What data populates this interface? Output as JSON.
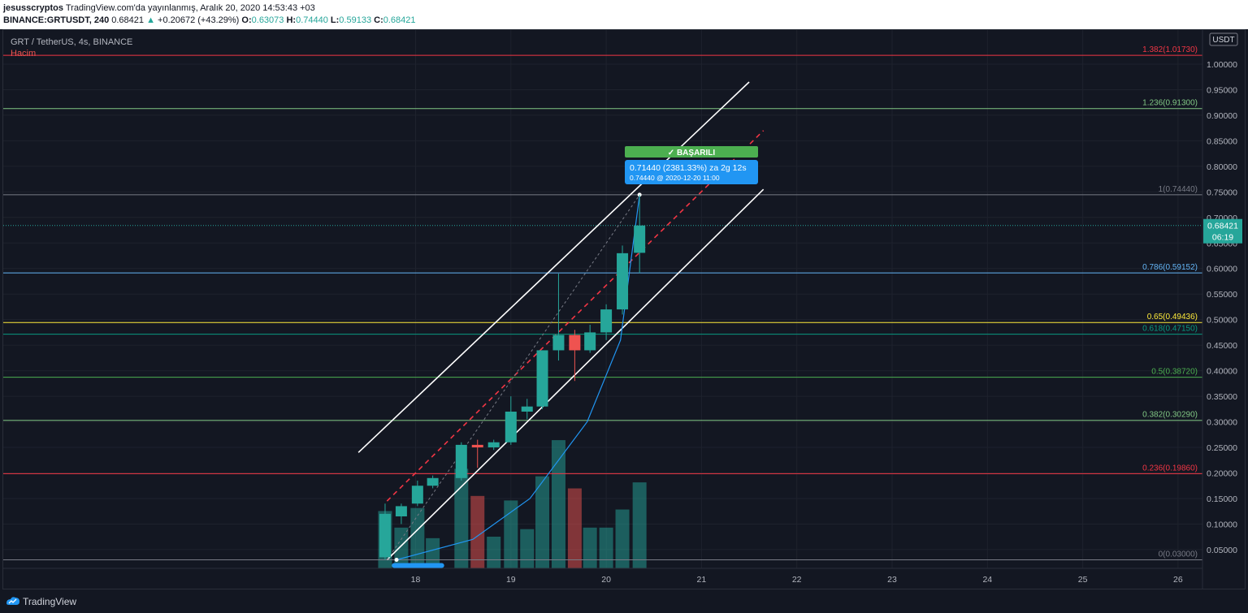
{
  "header": {
    "author": "jesusscryptos",
    "publish_text": "TradingView.com'da yayınlanmış, Aralık 20, 2020 14:53:43 +03",
    "symbol": "BINANCE:GRTUSDT, 240",
    "last": "0.68421",
    "change_icon": "triangle-up-icon",
    "change": "+0.20672 (+43.29%)",
    "o_label": "O:",
    "o": "0.63073",
    "h_label": "H:",
    "h": "0.74440",
    "l_label": "L:",
    "l": "0.59133",
    "c_label": "C:",
    "c": "0.68421"
  },
  "legend": {
    "title": "GRT / TetherUS, 4s, BINANCE",
    "volume_label": "Hacim"
  },
  "price_axis": {
    "currency": "USDT",
    "current_price": "0.68421",
    "countdown": "06:19"
  },
  "footer": {
    "brand": "TradingView",
    "logo_icon": "tradingview-logo-icon"
  },
  "annotations": {
    "success_label": "✓ BAŞARILI",
    "measure_line1": "0.71440 (2381.33%) za 2g 12s",
    "measure_line2": "0.74440 @ 2020-12-20  11:00"
  },
  "colors": {
    "up": "#26a69a",
    "down": "#ef5350",
    "background": "#131722",
    "success": "#4caf50",
    "measure": "#2196f3"
  },
  "chart_data": {
    "type": "candlestick",
    "symbol": "GRT / TetherUS",
    "interval": "4s",
    "exchange": "BINANCE",
    "ylim": [
      0.0,
      1.05
    ],
    "y_ticks": [
      "0.05000",
      "0.10000",
      "0.15000",
      "0.20000",
      "0.25000",
      "0.30000",
      "0.35000",
      "0.40000",
      "0.45000",
      "0.50000",
      "0.55000",
      "0.60000",
      "0.65000",
      "0.70000",
      "0.75000",
      "0.80000",
      "0.85000",
      "0.90000",
      "0.95000",
      "1.00000"
    ],
    "x_ticks": [
      "18",
      "19",
      "20",
      "21",
      "22",
      "23",
      "24",
      "25",
      "26"
    ],
    "fib_levels": [
      {
        "ratio": 0,
        "price": 0.03,
        "label": "0(0.03000)",
        "color": "#787b86"
      },
      {
        "ratio": 0.236,
        "price": 0.1986,
        "label": "0.236(0.19860)",
        "color": "#f23645"
      },
      {
        "ratio": 0.382,
        "price": 0.3029,
        "label": "0.382(0.30290)",
        "color": "#81c784"
      },
      {
        "ratio": 0.5,
        "price": 0.3872,
        "label": "0.5(0.38720)",
        "color": "#4caf50"
      },
      {
        "ratio": 0.618,
        "price": 0.4715,
        "label": "0.618(0.47150)",
        "color": "#089981"
      },
      {
        "ratio": 0.65,
        "price": 0.49436,
        "label": "0.65(0.49436)",
        "color": "#ffeb3b"
      },
      {
        "ratio": 0.786,
        "price": 0.59152,
        "label": "0.786(0.59152)",
        "color": "#64b5f6"
      },
      {
        "ratio": 1,
        "price": 0.7444,
        "label": "1(0.74440)",
        "color": "#787b86"
      },
      {
        "ratio": 1.236,
        "price": 0.913,
        "label": "1.236(0.91300)",
        "color": "#81c784"
      },
      {
        "ratio": 1.382,
        "price": 1.0173,
        "label": "1.382(1.01730)",
        "color": "#f23645"
      }
    ],
    "candles": [
      {
        "x": 17.68,
        "o": 0.035,
        "h": 0.14,
        "l": 0.03,
        "c": 0.12
      },
      {
        "x": 17.85,
        "o": 0.115,
        "h": 0.14,
        "l": 0.1,
        "c": 0.135
      },
      {
        "x": 18.02,
        "o": 0.14,
        "h": 0.185,
        "l": 0.135,
        "c": 0.175
      },
      {
        "x": 18.18,
        "o": 0.175,
        "h": 0.195,
        "l": 0.17,
        "c": 0.19
      },
      {
        "x": 18.48,
        "o": 0.19,
        "h": 0.26,
        "l": 0.185,
        "c": 0.255
      },
      {
        "x": 18.65,
        "o": 0.255,
        "h": 0.265,
        "l": 0.21,
        "c": 0.25
      },
      {
        "x": 18.82,
        "o": 0.25,
        "h": 0.265,
        "l": 0.245,
        "c": 0.26
      },
      {
        "x": 19.0,
        "o": 0.26,
        "h": 0.35,
        "l": 0.255,
        "c": 0.32
      },
      {
        "x": 19.17,
        "o": 0.32,
        "h": 0.345,
        "l": 0.305,
        "c": 0.33
      },
      {
        "x": 19.33,
        "o": 0.33,
        "h": 0.44,
        "l": 0.325,
        "c": 0.44
      },
      {
        "x": 19.5,
        "o": 0.44,
        "h": 0.59,
        "l": 0.42,
        "c": 0.47
      },
      {
        "x": 19.67,
        "o": 0.47,
        "h": 0.48,
        "l": 0.38,
        "c": 0.44
      },
      {
        "x": 19.83,
        "o": 0.44,
        "h": 0.49,
        "l": 0.435,
        "c": 0.475
      },
      {
        "x": 20.0,
        "o": 0.475,
        "h": 0.53,
        "l": 0.46,
        "c": 0.52
      },
      {
        "x": 20.17,
        "o": 0.52,
        "h": 0.645,
        "l": 0.51,
        "c": 0.63
      },
      {
        "x": 20.35,
        "o": 0.63073,
        "h": 0.7444,
        "l": 0.59133,
        "c": 0.68421
      }
    ],
    "volumes": [
      {
        "x": 17.68,
        "v": 0.38,
        "up": true
      },
      {
        "x": 17.85,
        "v": 0.27,
        "up": true
      },
      {
        "x": 18.02,
        "v": 0.4,
        "up": true
      },
      {
        "x": 18.18,
        "v": 0.2,
        "up": true
      },
      {
        "x": 18.48,
        "v": 0.66,
        "up": true
      },
      {
        "x": 18.65,
        "v": 0.48,
        "up": false
      },
      {
        "x": 18.82,
        "v": 0.21,
        "up": true
      },
      {
        "x": 19.0,
        "v": 0.45,
        "up": true
      },
      {
        "x": 19.17,
        "v": 0.26,
        "up": true
      },
      {
        "x": 19.33,
        "v": 0.61,
        "up": true
      },
      {
        "x": 19.5,
        "v": 0.85,
        "up": true
      },
      {
        "x": 19.67,
        "v": 0.53,
        "up": false
      },
      {
        "x": 19.83,
        "v": 0.27,
        "up": true
      },
      {
        "x": 20.0,
        "v": 0.27,
        "up": true
      },
      {
        "x": 20.17,
        "v": 0.39,
        "up": true
      },
      {
        "x": 20.35,
        "v": 0.57,
        "up": true
      }
    ],
    "channel": {
      "upper": [
        [
          17.4,
          0.24
        ],
        [
          21.5,
          0.965
        ]
      ],
      "lower": [
        [
          17.7,
          0.03
        ],
        [
          21.65,
          0.755
        ]
      ],
      "middle_dashed": [
        [
          17.7,
          0.145
        ],
        [
          21.65,
          0.87
        ]
      ],
      "guide_dotted": [
        [
          17.7,
          0.03
        ],
        [
          20.35,
          0.744
        ]
      ]
    },
    "measure_curve": [
      [
        17.8,
        0.03
      ],
      [
        18.6,
        0.07
      ],
      [
        19.2,
        0.15
      ],
      [
        19.8,
        0.3
      ],
      [
        20.15,
        0.46
      ],
      [
        20.35,
        0.744
      ]
    ],
    "measure_base": [
      17.75,
      18.3
    ]
  }
}
